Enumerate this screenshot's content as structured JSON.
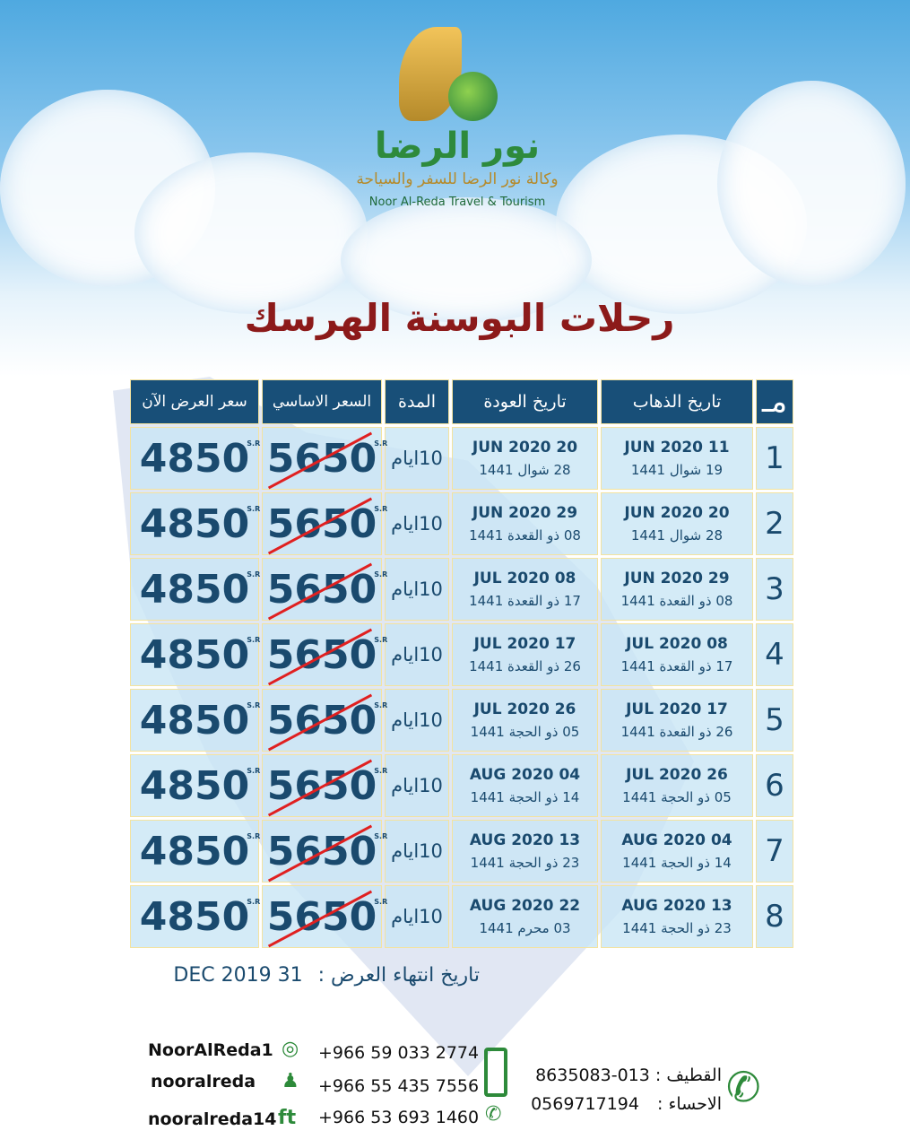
{
  "logo": {
    "arabic_name": "نور الرضا",
    "arabic_sub": "وكالة نور الرضا للسفر والسياحة",
    "english": "Noor Al-Reda Travel & Tourism"
  },
  "title": "رحلات البوسنة الهرسك",
  "table": {
    "headers": {
      "num": "مـ",
      "departure": "تاريخ الذهاب",
      "return": "تاريخ العودة",
      "duration": "المدة",
      "base_price": "السعر الاساسي",
      "offer_price": "سعر العرض الآن"
    },
    "currency": "S.R",
    "rows": [
      {
        "num": "1",
        "dep": "11 JUN 2020",
        "dep_h": "19 شوال 1441",
        "ret": "20 JUN 2020",
        "ret_h": "28 شوال 1441",
        "duration": "10ايام",
        "base": "5650",
        "offer": "4850"
      },
      {
        "num": "2",
        "dep": "20 JUN 2020",
        "dep_h": "28 شوال 1441",
        "ret": "29 JUN 2020",
        "ret_h": "08 ذو القعدة 1441",
        "duration": "10ايام",
        "base": "5650",
        "offer": "4850"
      },
      {
        "num": "3",
        "dep": "29 JUN 2020",
        "dep_h": "08 ذو القعدة 1441",
        "ret": "08 JUL 2020",
        "ret_h": "17 ذو القعدة 1441",
        "duration": "10ايام",
        "base": "5650",
        "offer": "4850"
      },
      {
        "num": "4",
        "dep": "08 JUL 2020",
        "dep_h": "17 ذو القعدة 1441",
        "ret": "17 JUL 2020",
        "ret_h": "26 ذو القعدة 1441",
        "duration": "10ايام",
        "base": "5650",
        "offer": "4850"
      },
      {
        "num": "5",
        "dep": "17 JUL 2020",
        "dep_h": "26 ذو القعدة 1441",
        "ret": "26 JUL 2020",
        "ret_h": "05 ذو الحجة 1441",
        "duration": "10ايام",
        "base": "5650",
        "offer": "4850"
      },
      {
        "num": "6",
        "dep": "26 JUL 2020",
        "dep_h": "05 ذو الحجة 1441",
        "ret": "04 AUG 2020",
        "ret_h": "14 ذو الحجة 1441",
        "duration": "10ايام",
        "base": "5650",
        "offer": "4850"
      },
      {
        "num": "7",
        "dep": "04 AUG 2020",
        "dep_h": "14 ذو الحجة 1441",
        "ret": "13 AUG 2020",
        "ret_h": "23 ذو الحجة 1441",
        "duration": "10ايام",
        "base": "5650",
        "offer": "4850"
      },
      {
        "num": "8",
        "dep": "13 AUG 2020",
        "dep_h": "23 ذو الحجة 1441",
        "ret": "22 AUG 2020",
        "ret_h": "03 محرم 1441",
        "duration": "10ايام",
        "base": "5650",
        "offer": "4850"
      }
    ]
  },
  "expiry": {
    "label": "تاريخ انتهاء العرض :",
    "date": "31 DEC 2019"
  },
  "contacts": {
    "instagram": "NoorAlReda1",
    "snapchat": "nooralreda",
    "facebook_twitter": "nooralreda14",
    "mobile1": "+966 59 033 2774",
    "mobile2": "+966 55 435 7556",
    "whatsapp": "+966 53 693 1460",
    "qatif_label": "القطيف :",
    "qatif": "013-8635083",
    "ahsa_label": "الاحساء :",
    "ahsa": "0569717194"
  },
  "colors": {
    "header": "#184f78",
    "title": "#8c1a1a",
    "strike": "#e02020",
    "icons": "#2d8a3a"
  }
}
